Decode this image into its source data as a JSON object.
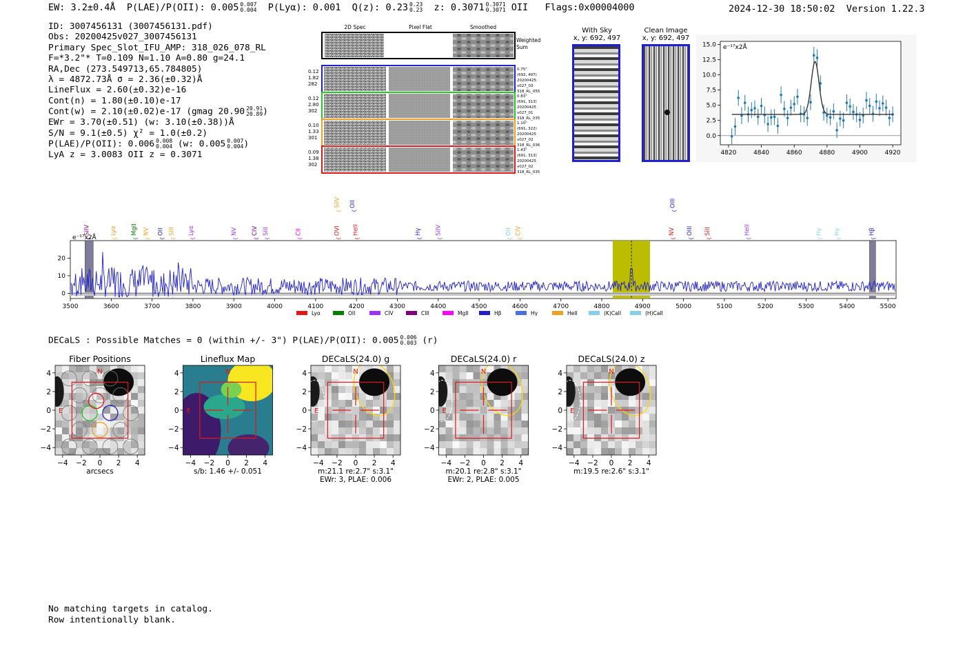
{
  "header": {
    "ew": "EW: 3.2±0.4Å",
    "plae_label": "P(LAE)/P(OII): 0.005",
    "plae_hi": "0.007",
    "plae_lo": "0.004",
    "plya": "P(Lyα): 0.001",
    "q_label": "Q(z): 0.23",
    "q_hi": "0.23",
    "q_lo": "0.23",
    "z_label": "z: 0.3071",
    "z_hi": "0.3071",
    "z_lo": "0.3071",
    "z_line": "OII",
    "flags": "Flags:0x00004000",
    "timestamp": "2024-12-30 18:50:02",
    "version": "Version 1.22.3"
  },
  "info": {
    "id": "ID: 3007456131 (3007456131.pdf)",
    "obs": "Obs: 20200425v027_3007456131",
    "primary": "Primary Spec_Slot_IFU_AMP: 318_026_078_RL",
    "fwhm": "F=*3.2\"*  T=0.109  N=1.10  A=0.80  g=24.1",
    "radec": "RA,Dec (273.549713,65.784805)",
    "lambda": "λ = 4872.73Å   σ = 2.36(±0.32)Å",
    "lineflux": "LineFlux = 2.60(±0.32)e-16",
    "contn": "Cont(n) = 1.80(±0.10)e-17",
    "contw": "Cont(w) = 2.10(±0.02)e-17 (gmag 20.90",
    "contw_hi": "20.91",
    "contw_lo": "20.89",
    "contw_end": ")",
    "ewr": "EWr = 3.70(±0.51) (w: 3.10(±0.38))Å",
    "sn": "S/N = 9.1(±0.5)  χ² = 1.0(±0.2)",
    "plae": "P(LAE)/P(OII): 0.006",
    "plae_hi": "0.008",
    "plae_lo": "0.004",
    "plae_w": "(w: 0.005",
    "plae_w_hi": "0.007",
    "plae_w_lo": "0.004",
    "plae_end": ")",
    "lyaz": "LyA z = 3.0083  OII z = 0.3071"
  },
  "spec2d": {
    "col_titles": [
      "2D Spec",
      "Pixel Flat",
      "Smoothed"
    ],
    "weighted_sum": "Weighted Sum",
    "rows": [
      {
        "left": [
          "0.12",
          "1.82",
          "282"
        ],
        "right": [
          "0.75\"",
          "(692, 497)",
          "20200425",
          "v027_03",
          "318_RL_055"
        ],
        "color": "#1f1fd0"
      },
      {
        "left": [
          "0.12",
          "2.80",
          "302"
        ],
        "right": [
          "0.83\"",
          "(691, 313)",
          "20200425",
          "v027_01",
          "318_RL_035"
        ],
        "color": "#22c922"
      },
      {
        "left": [
          "0.10",
          "1.33",
          "301"
        ],
        "right": [
          "1.10\"",
          "(691, 322)",
          "20200425",
          "v027_02",
          "318_RL_036"
        ],
        "color": "#f0a020"
      },
      {
        "left": [
          "0.09",
          "1.38",
          "302"
        ],
        "right": [
          "1.43\"",
          "(691, 313)",
          "20200425",
          "v027_02",
          "318_RL_035"
        ],
        "color": "#e01818"
      }
    ]
  },
  "cutouts": {
    "with_sky": {
      "title": "With Sky",
      "coords": "x, y: 692, 497"
    },
    "clean": {
      "title": "Clean Image",
      "coords": "x, y: 692, 497"
    }
  },
  "colors": {
    "blue": "#1f1fd0",
    "green": "#22c922",
    "orange": "#f0a020",
    "red": "#e01818",
    "fitblue": "#1f77b4",
    "olive": "#bcbd00"
  },
  "chart_data": [
    {
      "type": "scatter",
      "title": "",
      "ylabel_unit": "e⁻¹⁷x2Å",
      "xlim": [
        4815,
        4925
      ],
      "ylim": [
        -1.5,
        15.5
      ],
      "xticks": [
        4820,
        4840,
        4860,
        4880,
        4900,
        4920
      ],
      "yticks": [
        0.0,
        2.5,
        5.0,
        7.5,
        10.0,
        12.5,
        15.0
      ],
      "x": [
        4822,
        4824,
        4826,
        4828,
        4830,
        4832,
        4834,
        4836,
        4838,
        4840,
        4842,
        4844,
        4846,
        4848,
        4850,
        4852,
        4854,
        4856,
        4858,
        4860,
        4862,
        4864,
        4866,
        4868,
        4870,
        4872,
        4874,
        4876,
        4878,
        4880,
        4882,
        4884,
        4886,
        4888,
        4890,
        4892,
        4894,
        4896,
        4898,
        4900,
        4902,
        4904,
        4906,
        4908,
        4910,
        4912,
        4914,
        4916,
        4918,
        4920
      ],
      "y": [
        -0.1,
        1.5,
        6.2,
        3.3,
        5.4,
        3.5,
        4.2,
        4.5,
        3.1,
        4.9,
        3.4,
        1.9,
        3.0,
        3.1,
        1.6,
        6.7,
        4.4,
        2.9,
        4.6,
        5.2,
        6.4,
        3.6,
        3.5,
        2.9,
        5.5,
        13.2,
        12.8,
        8.6,
        3.8,
        3.3,
        3.0,
        4.0,
        0.9,
        2.8,
        2.5,
        5.4,
        4.8,
        3.9,
        3.5,
        2.6,
        3.3,
        5.8,
        4.9,
        3.6,
        5.6,
        4.5,
        5.3,
        4.6,
        2.9,
        3.5
      ],
      "err": [
        1.3,
        1.4,
        1.3,
        1.4,
        1.3,
        1.3,
        1.3,
        1.3,
        1.3,
        1.3,
        1.4,
        1.3,
        1.3,
        1.3,
        1.3,
        1.4,
        1.3,
        1.3,
        1.3,
        1.3,
        1.3,
        1.4,
        1.3,
        1.3,
        1.3,
        1.4,
        1.4,
        1.3,
        1.3,
        1.3,
        1.3,
        1.3,
        1.3,
        1.3,
        1.3,
        1.4,
        1.3,
        1.3,
        1.3,
        1.3,
        1.3,
        1.4,
        1.3,
        1.3,
        1.3,
        1.3,
        1.3,
        1.3,
        1.3,
        1.3
      ],
      "fit": {
        "continuum": 3.5,
        "center": 4872.73,
        "sigma": 2.36,
        "amplitude": 8.7
      }
    },
    {
      "type": "line",
      "title": "",
      "ylabel_unit": "e⁻¹⁷x2Å",
      "xlim": [
        3500,
        5520
      ],
      "ylim": [
        -3,
        30
      ],
      "xticks": [
        3500,
        3600,
        3700,
        3800,
        3900,
        4000,
        4100,
        4200,
        4300,
        4400,
        4500,
        4600,
        4700,
        4800,
        4900,
        5000,
        5100,
        5200,
        5300,
        5400,
        5500
      ],
      "yticks": [
        0,
        10,
        20
      ],
      "highlight_band": [
        4827,
        4918
      ],
      "line_marker": 4872.73,
      "masked_regions": [
        [
          3536,
          3556
        ],
        [
          5455,
          5470
        ]
      ],
      "series": [
        {
          "name": "spectrum",
          "color": "#1f1fd0",
          "description": "noisy flux ~5 decreasing to ~4, with peaks up to 27 near 3560 and a peak ~14 at 4873"
        }
      ],
      "line_labels": [
        {
          "name": "SiIV",
          "x": 3545,
          "color": "#800080",
          "tier": 1
        },
        {
          "name": "Lyα",
          "x": 3610,
          "color": "#f0a020",
          "tier": 1
        },
        {
          "name": "MgII",
          "x": 3660,
          "color": "#008000",
          "tier": 1
        },
        {
          "name": "NV",
          "x": 3690,
          "color": "#f0a020",
          "tier": 1
        },
        {
          "name": "OII",
          "x": 3725,
          "color": "#1f1fd0",
          "tier": 1
        },
        {
          "name": "SiII",
          "x": 3752,
          "color": "#f0a020",
          "tier": 1
        },
        {
          "name": "Lyα",
          "x": 3800,
          "color": "#9b30ff",
          "tier": 1
        },
        {
          "name": "NV",
          "x": 3905,
          "color": "#9b30ff",
          "tier": 1
        },
        {
          "name": "CIV",
          "x": 3955,
          "color": "#800080",
          "tier": 1
        },
        {
          "name": "SiII",
          "x": 3982,
          "color": "#9b30ff",
          "tier": 1
        },
        {
          "name": "CII",
          "x": 4062,
          "color": "#ff00ff",
          "tier": 1
        },
        {
          "name": "SiIV",
          "x": 4157,
          "color": "#f0a020",
          "tier": 0
        },
        {
          "name": "OVI",
          "x": 4157,
          "color": "#e01818",
          "tier": 1
        },
        {
          "name": "OII",
          "x": 4195,
          "color": "#1f1fd0",
          "tier": 0
        },
        {
          "name": "HeII",
          "x": 4202,
          "color": "#e01818",
          "tier": 1
        },
        {
          "name": "Hγ",
          "x": 4355,
          "color": "#1f1fd0",
          "tier": 1
        },
        {
          "name": "SiIV",
          "x": 4405,
          "color": "#9b30ff",
          "tier": 1
        },
        {
          "name": "OII",
          "x": 4577,
          "color": "#87ceeb",
          "tier": 1
        },
        {
          "name": "CIV",
          "x": 4600,
          "color": "#f0a020",
          "tier": 1
        },
        {
          "name": "OIII",
          "x": 4978,
          "color": "#1f1fd0",
          "tier": 0
        },
        {
          "name": "NV",
          "x": 4975,
          "color": "#e01818",
          "tier": 1
        },
        {
          "name": "OIII",
          "x": 5019,
          "color": "#1f1fd0",
          "tier": 1
        },
        {
          "name": "SiII",
          "x": 5063,
          "color": "#e01818",
          "tier": 1
        },
        {
          "name": "HeII",
          "x": 5160,
          "color": "#9b30ff",
          "tier": 1
        },
        {
          "name": "Hγ",
          "x": 5335,
          "color": "#87ceeb",
          "tier": 1
        },
        {
          "name": "Hγ",
          "x": 5380,
          "color": "#87ceeb",
          "tier": 1
        },
        {
          "name": "Hβ",
          "x": 5465,
          "color": "#1f1fd0",
          "tier": 1
        }
      ],
      "legend": [
        {
          "name": "Lyα",
          "color": "#e01818"
        },
        {
          "name": "OII",
          "color": "#008000"
        },
        {
          "name": "CIV",
          "color": "#9b30ff"
        },
        {
          "name": "CIII",
          "color": "#800080"
        },
        {
          "name": "MgII",
          "color": "#ff00ff"
        },
        {
          "name": "Hβ",
          "color": "#1f1fd0"
        },
        {
          "name": "Hγ",
          "color": "#4a6fe3"
        },
        {
          "name": "HeII",
          "color": "#f0a020"
        },
        {
          "name": "(K)CaII",
          "color": "#87ceeb"
        },
        {
          "name": "(H)CaII",
          "color": "#87ceeb"
        }
      ]
    }
  ],
  "decals": {
    "summary": "DECaLS : Possible Matches = 0 (within +/- 3\")  P(LAE)/P(OII): 0.005",
    "summary_hi": "0.006",
    "summary_lo": "0.003",
    "summary_end": "(r)",
    "panels": [
      {
        "title": "Fiber Positions",
        "caption1": "arcsecs",
        "caption2": "",
        "type": "fiber"
      },
      {
        "title": "Lineflux Map",
        "caption1": "s/b: 1.46 +/- 0.051",
        "caption2": "",
        "type": "lineflux"
      },
      {
        "title": "DECaLS(24.0) g",
        "caption1": "m:21.1  re:2.7\"  s:3.1\"",
        "caption2": "EWr: 3, PLAE: 0.006",
        "type": "decals"
      },
      {
        "title": "DECaLS(24.0) r",
        "caption1": "m:20.1  re:2.8\"  s:3.1\"",
        "caption2": "EWr: 2, PLAE: 0.005",
        "type": "decals"
      },
      {
        "title": "DECaLS(24.0) z",
        "caption1": "m:19.5  re:2.6\"  s:3.1\"",
        "caption2": "",
        "type": "decals"
      }
    ],
    "ticks": [
      "−4",
      "−2",
      "0",
      "2",
      "4"
    ],
    "north": "N",
    "east": "E"
  },
  "footer": {
    "line1": "No matching targets in catalog.",
    "line2": "Row intentionally blank."
  }
}
